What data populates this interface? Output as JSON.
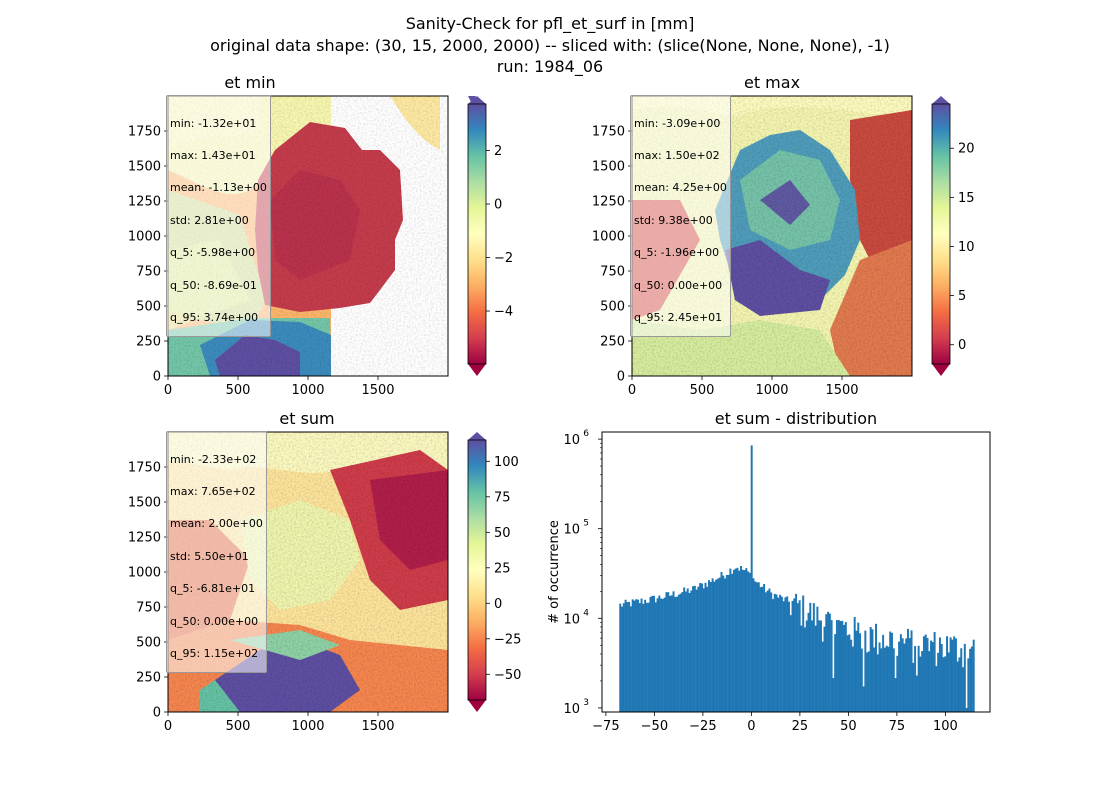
{
  "suptitle": {
    "line1": "Sanity-Check for pfl_et_surf in [mm]",
    "line2": "original data shape: (30, 15, 2000, 2000) -- sliced with: (slice(None, None, None), -1)",
    "line3": "run: 1984_06"
  },
  "panels": [
    {
      "title": "et min",
      "stats": [
        "min: -1.32e+01",
        "max: 1.43e+01",
        "mean: -1.13e+00",
        "std: 2.81e+00",
        "q_5: -5.98e+00",
        "q_50: -8.69e-01",
        "q_95: 3.74e+00"
      ],
      "x_ticks": [
        "0",
        "500",
        "1000",
        "1500"
      ],
      "y_ticks": [
        "0",
        "250",
        "500",
        "750",
        "1000",
        "1250",
        "1500",
        "1750"
      ],
      "colorbar": {
        "range": [
          -5.98,
          3.74
        ],
        "ticks": [
          "−4",
          "−2",
          "0",
          "2"
        ],
        "tick_values": [
          -4,
          -2,
          0,
          2
        ]
      }
    },
    {
      "title": "et max",
      "stats": [
        "min: -3.09e+00",
        "max: 1.50e+02",
        "mean: 4.25e+00",
        "std: 9.38e+00",
        "q_5: -1.96e+00",
        "q_50: 0.00e+00",
        "q_95: 2.45e+01"
      ],
      "x_ticks": [
        "0",
        "500",
        "1000",
        "1500"
      ],
      "y_ticks": [
        "0",
        "250",
        "500",
        "750",
        "1000",
        "1250",
        "1500",
        "1750"
      ],
      "colorbar": {
        "range": [
          -1.96,
          24.5
        ],
        "ticks": [
          "0",
          "5",
          "10",
          "15",
          "20"
        ],
        "tick_values": [
          0,
          5,
          10,
          15,
          20
        ]
      }
    },
    {
      "title": "et sum",
      "stats": [
        "min: -2.33e+02",
        "max: 7.65e+02",
        "mean: 2.00e+00",
        "std: 5.50e+01",
        "q_5: -6.81e+01",
        "q_50: 0.00e+00",
        "q_95: 1.15e+02"
      ],
      "x_ticks": [
        "0",
        "500",
        "1000",
        "1500"
      ],
      "y_ticks": [
        "0",
        "250",
        "500",
        "750",
        "1000",
        "1250",
        "1500",
        "1750"
      ],
      "colorbar": {
        "range": [
          -68.1,
          115
        ],
        "ticks": [
          "−50",
          "−25",
          "0",
          "25",
          "50",
          "75",
          "100"
        ],
        "tick_values": [
          -50,
          -25,
          0,
          25,
          50,
          75,
          100
        ]
      }
    }
  ],
  "chart_data": {
    "type": "bar",
    "title": "et sum - distribution",
    "xlabel": "",
    "ylabel": "# of occurrence",
    "yscale": "log",
    "xlim": [
      -77,
      123
    ],
    "ylim": [
      900,
      1200000
    ],
    "x_ticks": [
      -75,
      -50,
      -25,
      0,
      25,
      50,
      75,
      100
    ],
    "x_tick_labels": [
      "−75",
      "−50",
      "−25",
      "0",
      "25",
      "50",
      "75",
      "100"
    ],
    "y_ticks": [
      1000,
      10000,
      100000,
      1000000
    ],
    "y_tick_labels": [
      [
        "10",
        "3"
      ],
      [
        "10",
        "4"
      ],
      [
        "10",
        "5"
      ],
      [
        "10",
        "6"
      ]
    ],
    "bin_range": [
      -68.1,
      115
    ],
    "bins": 200,
    "bar_color": "#1f77b4",
    "spike": {
      "x": 0,
      "count": 850000
    },
    "profile": [
      {
        "x": -68,
        "count": 14000
      },
      {
        "x": -50,
        "count": 16500
      },
      {
        "x": -30,
        "count": 21000
      },
      {
        "x": -15,
        "count": 30000
      },
      {
        "x": -8,
        "count": 38000
      },
      {
        "x": -2,
        "count": 33000
      },
      {
        "x": 2,
        "count": 26000
      },
      {
        "x": 10,
        "count": 19000
      },
      {
        "x": 25,
        "count": 13500
      },
      {
        "x": 40,
        "count": 9000
      },
      {
        "x": 60,
        "count": 6500
      },
      {
        "x": 80,
        "count": 5500
      },
      {
        "x": 100,
        "count": 5000
      },
      {
        "x": 115,
        "count": 4500
      }
    ]
  }
}
